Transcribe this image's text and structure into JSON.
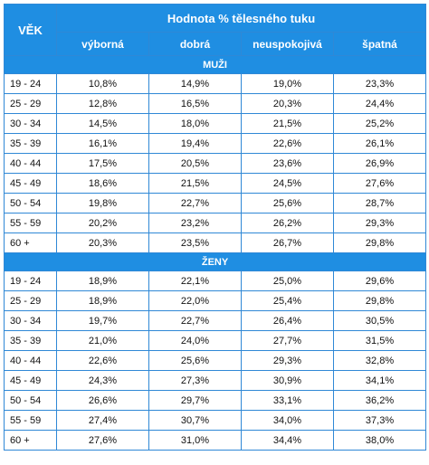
{
  "header": {
    "age_label": "VĚK",
    "title": "Hodnota % tělesného tuku",
    "columns": [
      "výborná",
      "dobrá",
      "neuspokojivá",
      "špatná"
    ]
  },
  "sections": [
    {
      "label": "MUŽI",
      "rows": [
        {
          "age": "19 - 24",
          "values": [
            "10,8%",
            "14,9%",
            "19,0%",
            "23,3%"
          ]
        },
        {
          "age": "25 - 29",
          "values": [
            "12,8%",
            "16,5%",
            "20,3%",
            "24,4%"
          ]
        },
        {
          "age": "30 - 34",
          "values": [
            "14,5%",
            "18,0%",
            "21,5%",
            "25,2%"
          ]
        },
        {
          "age": "35 - 39",
          "values": [
            "16,1%",
            "19,4%",
            "22,6%",
            "26,1%"
          ]
        },
        {
          "age": "40 - 44",
          "values": [
            "17,5%",
            "20,5%",
            "23,6%",
            "26,9%"
          ]
        },
        {
          "age": "45 - 49",
          "values": [
            "18,6%",
            "21,5%",
            "24,5%",
            "27,6%"
          ]
        },
        {
          "age": "50 - 54",
          "values": [
            "19,8%",
            "22,7%",
            "25,6%",
            "28,7%"
          ]
        },
        {
          "age": "55 - 59",
          "values": [
            "20,2%",
            "23,2%",
            "26,2%",
            "29,3%"
          ]
        },
        {
          "age": "60 +",
          "values": [
            "20,3%",
            "23,5%",
            "26,7%",
            "29,8%"
          ]
        }
      ]
    },
    {
      "label": "ŽENY",
      "rows": [
        {
          "age": "19 - 24",
          "values": [
            "18,9%",
            "22,1%",
            "25,0%",
            "29,6%"
          ]
        },
        {
          "age": "25 - 29",
          "values": [
            "18,9%",
            "22,0%",
            "25,4%",
            "29,8%"
          ]
        },
        {
          "age": "30 - 34",
          "values": [
            "19,7%",
            "22,7%",
            "26,4%",
            "30,5%"
          ]
        },
        {
          "age": "35 - 39",
          "values": [
            "21,0%",
            "24,0%",
            "27,7%",
            "31,5%"
          ]
        },
        {
          "age": "40 - 44",
          "values": [
            "22,6%",
            "25,6%",
            "29,3%",
            "32,8%"
          ]
        },
        {
          "age": "45 - 49",
          "values": [
            "24,3%",
            "27,3%",
            "30,9%",
            "34,1%"
          ]
        },
        {
          "age": "50 - 54",
          "values": [
            "26,6%",
            "29,7%",
            "33,1%",
            "36,2%"
          ]
        },
        {
          "age": "55 - 59",
          "values": [
            "27,4%",
            "30,7%",
            "34,0%",
            "37,3%"
          ]
        },
        {
          "age": "60 +",
          "values": [
            "27,6%",
            "31,0%",
            "34,4%",
            "38,0%"
          ]
        }
      ]
    }
  ]
}
